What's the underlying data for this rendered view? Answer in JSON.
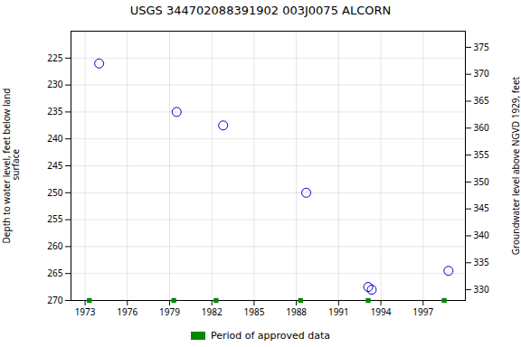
{
  "chart_data": {
    "type": "scatter",
    "title": "USGS 344702088391902 003J0075  ALCORN",
    "ylabel": "Depth to water level, feet below land\n surface",
    "y2label": "Groundwater level above NGVD 1929, feet",
    "xlim": [
      1972,
      2000
    ],
    "xticks": [
      1973,
      1976,
      1979,
      1982,
      1985,
      1988,
      1991,
      1994,
      1997
    ],
    "ylim": [
      270,
      220
    ],
    "yticks": [
      225,
      230,
      235,
      240,
      245,
      250,
      255,
      260,
      265,
      270
    ],
    "y2lim": [
      328,
      378
    ],
    "y2ticks": [
      375,
      370,
      365,
      360,
      355,
      350,
      345,
      340,
      335,
      330
    ],
    "grid": true,
    "legend": "bottom",
    "series": [
      {
        "x": [
          1974.0,
          1979.5,
          1982.8,
          1988.7,
          1993.1,
          1993.35,
          1998.8
        ],
        "values": [
          226.0,
          235.0,
          237.5,
          250.0,
          267.5,
          268.0,
          264.5
        ],
        "color": "#0000CC",
        "marker": "open_circle"
      },
      {
        "name": "Period of approved data",
        "x": [
          1973.3,
          1979.3,
          1982.3,
          1988.3,
          1993.1,
          1998.5
        ],
        "values": [
          270,
          270,
          270,
          270,
          270,
          270
        ],
        "color": "#008800",
        "marker": "square"
      }
    ]
  }
}
